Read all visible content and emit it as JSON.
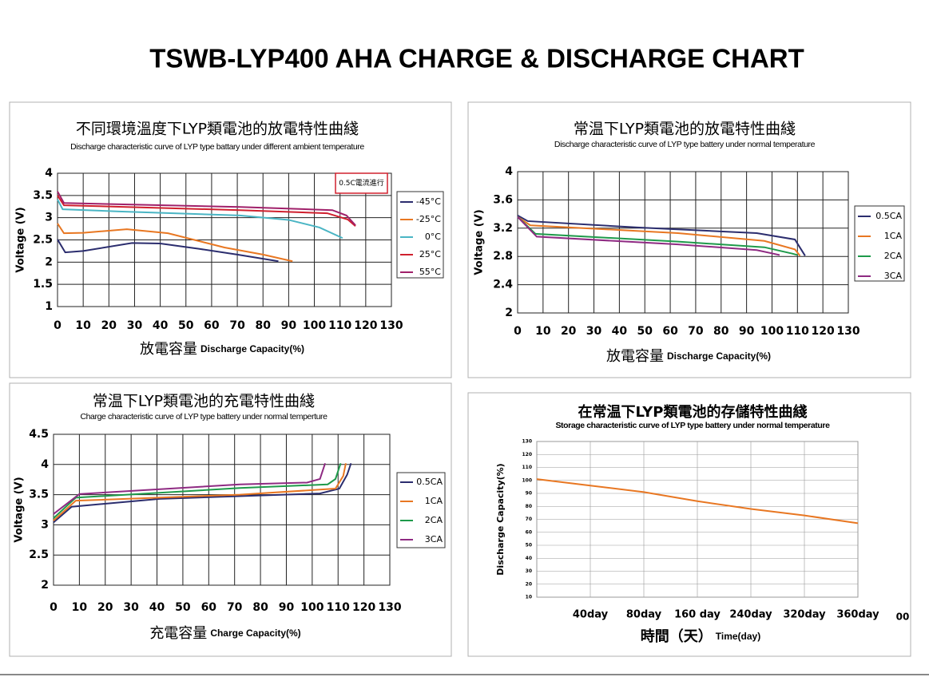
{
  "page_title": "TSWB-LYP400 AHA CHARGE & DISCHARGE CHART",
  "chart_data": [
    {
      "type": "line",
      "title": "不同環境溫度下LYP類電池的放電特性曲綫",
      "subtitle": "Discharge characteristic curve of LYP type battary under different ambient temperature",
      "ylabel": "Voltage (V)",
      "xlabel_cn": "放電容量",
      "xlabel": "Discharge Capacity(%)",
      "annotation": "0.5C電流進行",
      "xlim": [
        0,
        130
      ],
      "xticks": [
        0,
        10,
        20,
        30,
        40,
        50,
        60,
        70,
        80,
        90,
        100,
        110,
        120,
        130
      ],
      "ylim": [
        1,
        4
      ],
      "yticks": [
        1,
        1.5,
        2,
        2.5,
        3,
        3.5,
        4
      ],
      "grid": true,
      "legend": "right",
      "series": [
        {
          "name": "-45°C",
          "color": "#2b2d6e",
          "x": [
            0,
            3,
            10,
            29,
            40,
            55,
            70,
            86
          ],
          "values": [
            2.51,
            2.22,
            2.25,
            2.43,
            2.42,
            2.3,
            2.17,
            2.02
          ]
        },
        {
          "name": "-25°C",
          "color": "#e87722",
          "x": [
            0,
            2.5,
            10,
            27,
            43,
            65,
            80,
            91.5
          ],
          "values": [
            2.87,
            2.65,
            2.66,
            2.74,
            2.65,
            2.33,
            2.17,
            2.02
          ]
        },
        {
          "name": "0°C",
          "color": "#4ab5c4",
          "x": [
            0,
            2,
            24,
            71,
            90,
            102,
            111
          ],
          "values": [
            3.41,
            3.19,
            3.14,
            3.05,
            2.95,
            2.78,
            2.54
          ]
        },
        {
          "name": "25°C",
          "color": "#d0202e",
          "x": [
            0,
            2.5,
            71,
            105,
            113,
            116
          ],
          "values": [
            3.5,
            3.28,
            3.17,
            3.1,
            2.96,
            2.81
          ]
        },
        {
          "name": "55°C",
          "color": "#a0206a",
          "x": [
            0,
            2.5,
            71,
            107,
            112.5,
            116
          ],
          "values": [
            3.59,
            3.33,
            3.24,
            3.17,
            3.05,
            2.83
          ]
        }
      ]
    },
    {
      "type": "line",
      "title": "常温下LYP類電池的放電特性曲綫",
      "subtitle": "Discharge characteristic curve of LYP type battery under normal temperature",
      "ylabel": "Voltage (V)",
      "xlabel_cn": "放電容量",
      "xlabel": "Discharge Capacity(%)",
      "xlim": [
        0,
        130
      ],
      "xticks": [
        0,
        10,
        20,
        30,
        40,
        50,
        60,
        70,
        80,
        90,
        100,
        110,
        120,
        130
      ],
      "ylim": [
        2,
        4
      ],
      "yticks": [
        2,
        2.4,
        2.8,
        3.2,
        3.6,
        4
      ],
      "grid": true,
      "legend": "right",
      "series": [
        {
          "name": "0.5CA",
          "color": "#2b2d6e",
          "x": [
            0,
            4,
            47,
            94,
            109,
            113
          ],
          "values": [
            3.38,
            3.3,
            3.21,
            3.13,
            3.04,
            2.81
          ]
        },
        {
          "name": "1CA",
          "color": "#e87722",
          "x": [
            0,
            5,
            63,
            97,
            109,
            111
          ],
          "values": [
            3.36,
            3.24,
            3.13,
            3.02,
            2.9,
            2.81
          ]
        },
        {
          "name": "2CA",
          "color": "#1e9a4a",
          "x": [
            0,
            7,
            63,
            97,
            108,
            110
          ],
          "values": [
            3.36,
            3.12,
            3.01,
            2.93,
            2.84,
            2.82
          ]
        },
        {
          "name": "3CA",
          "color": "#8e2a82",
          "x": [
            0,
            7.5,
            63,
            94,
            103
          ],
          "values": [
            3.36,
            3.08,
            2.97,
            2.89,
            2.82
          ]
        }
      ]
    },
    {
      "type": "line",
      "title": "常温下LYP類電池的充電特性曲綫",
      "subtitle": "Charge characteristic curve of LYP type battery under normal temperture",
      "ylabel": "Voltage (V)",
      "xlabel_cn": "充電容量",
      "xlabel": "Charge Capacity(%)",
      "xlim": [
        0,
        130
      ],
      "xticks": [
        0,
        10,
        20,
        30,
        40,
        50,
        60,
        70,
        80,
        90,
        100,
        110,
        120,
        130
      ],
      "ylim": [
        2,
        4.5
      ],
      "yticks": [
        2,
        2.5,
        3,
        3.5,
        4,
        4.5
      ],
      "grid": true,
      "legend": "right",
      "series": [
        {
          "name": "0.5CA",
          "color": "#2b2d6e",
          "x": [
            0,
            7,
            41,
            103,
            110.5,
            113.5,
            115
          ],
          "values": [
            3.04,
            3.3,
            3.43,
            3.52,
            3.6,
            3.83,
            4.02
          ]
        },
        {
          "name": "1CA",
          "color": "#e87722",
          "x": [
            0,
            8.6,
            72,
            109,
            112,
            113
          ],
          "values": [
            3.07,
            3.4,
            3.5,
            3.6,
            3.81,
            4.02
          ]
        },
        {
          "name": "2CA",
          "color": "#1e9a4a",
          "x": [
            0,
            8.6,
            72,
            106,
            109,
            111
          ],
          "values": [
            3.11,
            3.45,
            3.61,
            3.67,
            3.76,
            4.02
          ]
        },
        {
          "name": "3CA",
          "color": "#8e2a82",
          "x": [
            0,
            10,
            72,
            98,
            103,
            105
          ],
          "values": [
            3.18,
            3.51,
            3.67,
            3.7,
            3.76,
            4.02
          ]
        }
      ]
    },
    {
      "type": "line",
      "title": "在常温下LYP類電池的存儲特性曲綫",
      "subtitle": "Storage characteristic curve of LYP type battery under normal temperature",
      "ylabel": "Discharge Capacity(%)",
      "xlabel_cn": "時間（天）",
      "xlabel": "Time(day)",
      "annotation": "00",
      "categories": [
        null,
        "40day",
        "80day",
        "160 day",
        "240day",
        "320day",
        "360day"
      ],
      "values": [
        101,
        96,
        91,
        84,
        78,
        73,
        67
      ],
      "color": "#e87722",
      "ylim": [
        10,
        130
      ],
      "yticks": [
        10,
        20,
        30,
        40,
        50,
        60,
        70,
        80,
        90,
        100,
        110,
        120,
        130
      ],
      "grid": true
    }
  ]
}
